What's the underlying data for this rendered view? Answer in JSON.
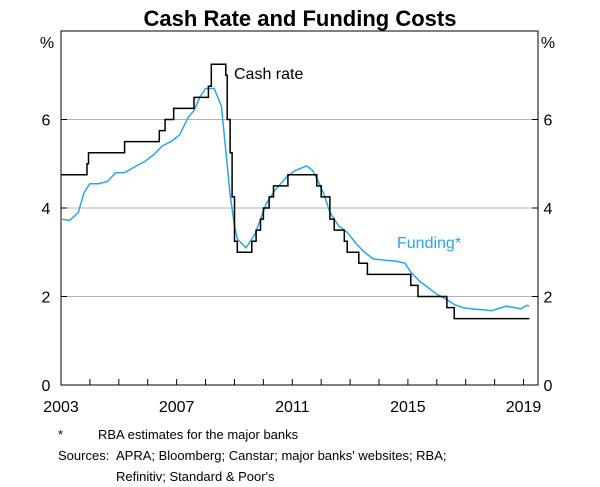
{
  "chart_data": {
    "type": "line",
    "title": "Cash Rate and Funding Costs",
    "ylabel_left": "%",
    "ylabel_right": "%",
    "xlim": [
      2003.0,
      2019.5
    ],
    "ylim": [
      0,
      8
    ],
    "grid": true,
    "x_ticks": [
      {
        "value": 2003,
        "label": "2003"
      },
      {
        "value": 2007,
        "label": "2007"
      },
      {
        "value": 2011,
        "label": "2011"
      },
      {
        "value": 2015,
        "label": "2015"
      },
      {
        "value": 2019,
        "label": "2019"
      }
    ],
    "y_ticks": [
      {
        "value": 0,
        "label": "0"
      },
      {
        "value": 2,
        "label": "2"
      },
      {
        "value": 4,
        "label": "4"
      },
      {
        "value": 6,
        "label": "6"
      }
    ],
    "series": [
      {
        "name": "Cash rate",
        "label": "Cash rate",
        "color": "#000000",
        "step": true,
        "points": [
          [
            2003.0,
            4.75
          ],
          [
            2003.9,
            5.0
          ],
          [
            2003.95,
            5.25
          ],
          [
            2005.2,
            5.5
          ],
          [
            2006.4,
            5.75
          ],
          [
            2006.6,
            6.0
          ],
          [
            2006.9,
            6.25
          ],
          [
            2007.6,
            6.5
          ],
          [
            2008.1,
            6.75
          ],
          [
            2008.2,
            7.0
          ],
          [
            2008.2,
            7.25
          ],
          [
            2008.7,
            7.0
          ],
          [
            2008.75,
            6.0
          ],
          [
            2008.85,
            5.25
          ],
          [
            2008.92,
            4.25
          ],
          [
            2009.0,
            3.25
          ],
          [
            2009.1,
            3.0
          ],
          [
            2009.6,
            3.25
          ],
          [
            2009.75,
            3.5
          ],
          [
            2009.9,
            3.75
          ],
          [
            2010.0,
            4.0
          ],
          [
            2010.2,
            4.25
          ],
          [
            2010.35,
            4.5
          ],
          [
            2010.85,
            4.75
          ],
          [
            2011.85,
            4.5
          ],
          [
            2012.0,
            4.25
          ],
          [
            2012.3,
            3.75
          ],
          [
            2012.45,
            3.5
          ],
          [
            2012.8,
            3.25
          ],
          [
            2012.9,
            3.0
          ],
          [
            2013.3,
            2.75
          ],
          [
            2013.6,
            2.5
          ],
          [
            2015.1,
            2.25
          ],
          [
            2015.35,
            2.0
          ],
          [
            2016.35,
            1.75
          ],
          [
            2016.6,
            1.5
          ],
          [
            2019.2,
            1.5
          ]
        ]
      },
      {
        "name": "Funding*",
        "label": "Funding*",
        "color": "#29A8DC",
        "step": false,
        "points": [
          [
            2003.0,
            3.75
          ],
          [
            2003.3,
            3.72
          ],
          [
            2003.6,
            3.9
          ],
          [
            2003.8,
            4.35
          ],
          [
            2004.0,
            4.55
          ],
          [
            2004.3,
            4.55
          ],
          [
            2004.6,
            4.6
          ],
          [
            2004.9,
            4.8
          ],
          [
            2005.2,
            4.8
          ],
          [
            2005.6,
            4.95
          ],
          [
            2005.9,
            5.05
          ],
          [
            2006.2,
            5.2
          ],
          [
            2006.5,
            5.4
          ],
          [
            2006.8,
            5.5
          ],
          [
            2007.1,
            5.65
          ],
          [
            2007.4,
            6.05
          ],
          [
            2007.6,
            6.2
          ],
          [
            2007.8,
            6.5
          ],
          [
            2008.0,
            6.7
          ],
          [
            2008.3,
            6.7
          ],
          [
            2008.55,
            6.3
          ],
          [
            2008.7,
            5.3
          ],
          [
            2008.85,
            4.3
          ],
          [
            2009.0,
            3.6
          ],
          [
            2009.1,
            3.3
          ],
          [
            2009.4,
            3.1
          ],
          [
            2009.7,
            3.4
          ],
          [
            2009.9,
            3.75
          ],
          [
            2010.1,
            4.1
          ],
          [
            2010.4,
            4.4
          ],
          [
            2010.8,
            4.7
          ],
          [
            2011.1,
            4.85
          ],
          [
            2011.3,
            4.9
          ],
          [
            2011.5,
            4.95
          ],
          [
            2011.7,
            4.85
          ],
          [
            2011.9,
            4.6
          ],
          [
            2012.1,
            4.3
          ],
          [
            2012.3,
            3.9
          ],
          [
            2012.6,
            3.6
          ],
          [
            2012.9,
            3.45
          ],
          [
            2013.2,
            3.2
          ],
          [
            2013.5,
            3.0
          ],
          [
            2013.8,
            2.85
          ],
          [
            2014.2,
            2.82
          ],
          [
            2014.6,
            2.8
          ],
          [
            2014.9,
            2.75
          ],
          [
            2015.1,
            2.55
          ],
          [
            2015.4,
            2.35
          ],
          [
            2015.7,
            2.2
          ],
          [
            2016.0,
            2.05
          ],
          [
            2016.3,
            1.95
          ],
          [
            2016.6,
            1.82
          ],
          [
            2016.9,
            1.75
          ],
          [
            2017.2,
            1.72
          ],
          [
            2017.6,
            1.7
          ],
          [
            2017.9,
            1.68
          ],
          [
            2018.1,
            1.72
          ],
          [
            2018.4,
            1.78
          ],
          [
            2018.7,
            1.75
          ],
          [
            2018.9,
            1.72
          ],
          [
            2019.1,
            1.8
          ],
          [
            2019.2,
            1.78
          ]
        ]
      }
    ]
  },
  "footnote": {
    "marker": "*",
    "text": "RBA estimates for the major banks"
  },
  "sources": {
    "label": "Sources:",
    "line1": "APRA; Bloomberg; Canstar; major banks' websites; RBA;",
    "line2": "Refinitiv; Standard & Poor's"
  }
}
